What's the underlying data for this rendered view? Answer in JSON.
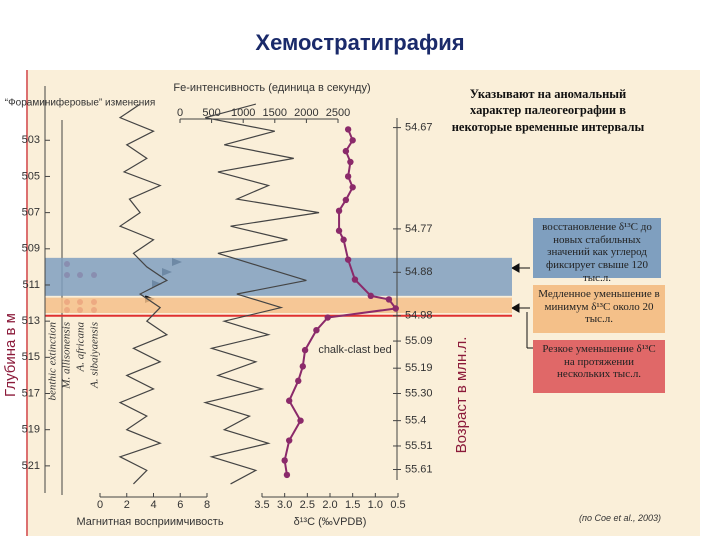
{
  "title": "Хемостратиграфия",
  "note": "Указывают на аномальный характер палеогеографии в некоторые временные интервалы",
  "citation": "(по Coe et al., 2003)",
  "boxes": [
    {
      "text": "восстановление δ¹³C до новых стабильных значений как углерод фиксирует свыше 120 тыс.л.",
      "color": "#7f9fbf"
    },
    {
      "text": "Медленное уменьшение в минимум δ¹³C около 20 тыс.л.",
      "color": "#f4c089"
    },
    {
      "text": "Резкое уменьшение δ¹³C на протяжении нескольких тыс.л.",
      "color": "#e06868"
    }
  ],
  "foram_title": "“Фораминиферовые” изменения",
  "foram_labels": [
    "benthic extinction",
    "M. allisonensis",
    "A. africana",
    "A. sibaiyaensis"
  ],
  "chalk_label": "chalk-clast bed",
  "chart_data": {
    "type": "line",
    "y_label": "Глубина в м",
    "ylim": [
      500,
      522.5
    ],
    "yticks": [
      503,
      505,
      507,
      509,
      511,
      513,
      515,
      517,
      519,
      521
    ],
    "y2_label": "Возраст в млн.л.",
    "age_ticks": [
      {
        "depth": 502.3,
        "age": 54.67
      },
      {
        "depth": 507.9,
        "age": 54.77
      },
      {
        "depth": 510.3,
        "age": 54.88
      },
      {
        "depth": 512.7,
        "age": 54.98
      },
      {
        "depth": 514.1,
        "age": 55.09
      },
      {
        "depth": 515.6,
        "age": 55.19
      },
      {
        "depth": 517.0,
        "age": {
          "value": 55.3,
          "label": "55.30"
        }
      },
      {
        "depth": 518.5,
        "age": 55.4
      },
      {
        "depth": 519.9,
        "age": 55.51
      },
      {
        "depth": 521.2,
        "age": 55.61
      }
    ],
    "bands": [
      {
        "from": 509.5,
        "to": 511.6,
        "color": "#7f9fbf"
      },
      {
        "from": 511.7,
        "to": 512.55,
        "color": "#f4c089"
      }
    ],
    "event_line": {
      "depth": 512.7,
      "color": "#e03030"
    },
    "series": [
      {
        "x_label": "Магнитная восприимчивость",
        "color": "#444444",
        "xlim": [
          0,
          8
        ],
        "xticks": [
          0,
          2,
          4,
          6,
          8
        ],
        "depth": [
          501,
          501.75,
          502.5,
          503.25,
          504,
          504.75,
          505.5,
          506.25,
          507,
          507.75,
          508.5,
          509.25,
          510,
          510.75,
          511.5,
          512.25,
          513,
          513.75,
          514.5,
          515.25,
          516,
          516.75,
          517.5,
          518.25,
          519,
          519.75,
          520.5,
          521.25,
          522
        ],
        "values": [
          3,
          1.5,
          4,
          2,
          3.5,
          1.8,
          4.5,
          2.2,
          3,
          1.5,
          4,
          2.5,
          3.5,
          5,
          3,
          4.5,
          3.5,
          5,
          2.5,
          4.5,
          2,
          4,
          1.5,
          3.5,
          2,
          4.5,
          1.5,
          3.5,
          2.5
        ]
      },
      {
        "x_label": "Fe-интенсивность (единица в секунду)",
        "color": "#444444",
        "xlim": [
          0,
          2500
        ],
        "xticks": [
          0,
          500,
          1000,
          1500,
          2000,
          2500
        ],
        "depth": [
          501,
          501.75,
          502.5,
          503.25,
          504,
          504.75,
          505.5,
          506.25,
          507,
          507.75,
          508.5,
          509.25,
          510,
          510.75,
          511.5,
          512.25,
          513,
          513.75,
          514.5,
          515.25,
          516,
          516.75,
          517.5,
          518.25,
          519,
          519.75,
          520.5,
          521.25,
          522
        ],
        "values": [
          1200,
          400,
          1500,
          700,
          1800,
          600,
          1400,
          900,
          2200,
          800,
          1700,
          600,
          1300,
          2000,
          900,
          1600,
          700,
          1400,
          500,
          1200,
          600,
          1300,
          400,
          1100,
          700,
          1400,
          500,
          1200,
          800
        ]
      },
      {
        "x_label": "δ¹³C (‰VPDB)",
        "color": "#8b2a6a",
        "xlim": [
          3.5,
          0.5
        ],
        "xticks": [
          3.5,
          {
            "value": 3,
            "label": "3.0"
          },
          2.5,
          {
            "value": 2,
            "label": "2.0"
          },
          1.5,
          {
            "value": 1,
            "label": "1.0"
          },
          0.5
        ],
        "depth": [
          502.4,
          503,
          503.6,
          504.2,
          505,
          505.6,
          506.3,
          506.9,
          508,
          508.5,
          509.6,
          510.7,
          511.6,
          511.8,
          512.3,
          512.8,
          513.5,
          514.6,
          515.5,
          516.3,
          517.4,
          518.5,
          519.6,
          520.7,
          521.5
        ],
        "values": [
          1.6,
          1.5,
          1.65,
          1.55,
          1.6,
          1.5,
          1.65,
          1.8,
          1.8,
          1.7,
          1.6,
          1.45,
          1.1,
          0.7,
          0.55,
          2.05,
          2.3,
          2.55,
          2.6,
          2.7,
          2.9,
          2.65,
          2.9,
          3.0,
          2.95
        ]
      }
    ]
  }
}
